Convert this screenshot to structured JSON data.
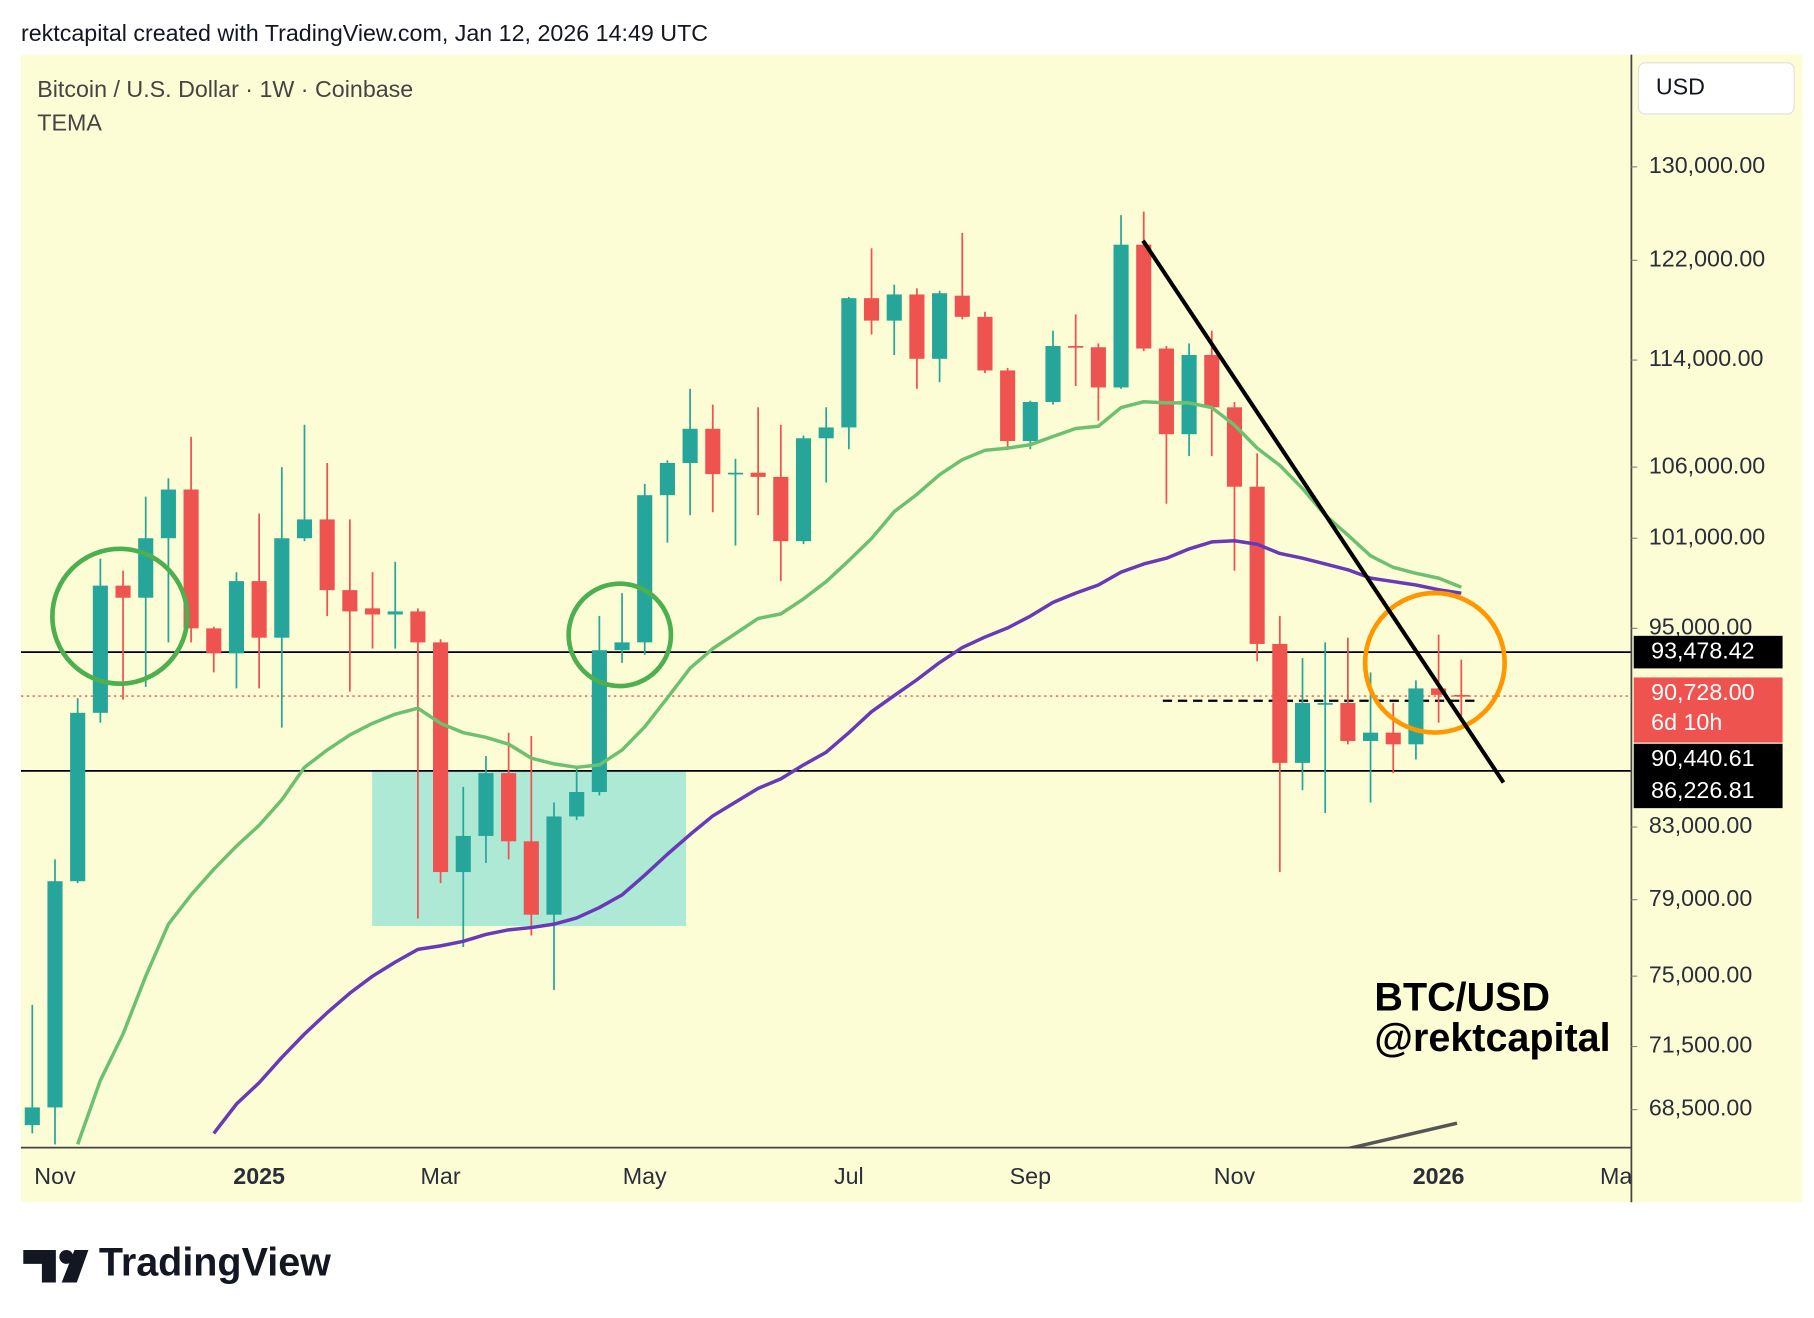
{
  "header": "rektcapital created with TradingView.com, Jan 12, 2026 14:49 UTC",
  "footer": "TradingView",
  "chart_data": {
    "type": "candlestick",
    "title": "Bitcoin / U.S. Dollar · 1W · Coinbase",
    "indicator": "TEMA",
    "currency": "USD",
    "annotation": [
      "BTC/USD",
      "@rektcapital"
    ],
    "categories": [
      null,
      "Nov",
      null,
      null,
      null,
      null,
      null,
      null,
      null,
      null,
      "2025",
      null,
      null,
      null,
      null,
      null,
      null,
      null,
      "Mar",
      null,
      null,
      null,
      null,
      null,
      null,
      null,
      null,
      "May",
      null,
      null,
      null,
      null,
      null,
      null,
      null,
      null,
      "Jul",
      null,
      null,
      null,
      null,
      null,
      null,
      null,
      "Sep",
      null,
      null,
      null,
      null,
      null,
      null,
      null,
      null,
      "Nov",
      null,
      null,
      null,
      null,
      null,
      null,
      null,
      null,
      "2026",
      null,
      null,
      null,
      null,
      null,
      null,
      null,
      "Mar"
    ],
    "open": [
      67780,
      68600,
      80000,
      89700,
      97800,
      97000,
      101000,
      104400,
      95000,
      93400,
      98100,
      94400,
      101000,
      102300,
      97500,
      96300,
      95900,
      96100,
      94100,
      80500,
      82500,
      86100,
      82200,
      78200,
      83600,
      85000,
      93600,
      94100,
      104000,
      106300,
      108800,
      105500,
      105600,
      105300,
      100800,
      108100,
      108900,
      118900,
      117100,
      119200,
      114100,
      119100,
      117400,
      113200,
      107900,
      110800,
      115100,
      115000,
      111900,
      123300,
      114900,
      108400,
      114400,
      110400,
      104600,
      94000,
      86700,
      90200,
      90300,
      88000,
      88500,
      87800,
      91200,
      90800,
      null,
      null,
      null,
      null,
      null,
      null,
      null
    ],
    "high": [
      73550,
      81200,
      90600,
      99600,
      98800,
      103900,
      105200,
      108200,
      95100,
      98700,
      102700,
      106000,
      109100,
      106300,
      102300,
      98700,
      99400,
      96300,
      94300,
      85300,
      87100,
      88500,
      88300,
      84400,
      86400,
      95800,
      97300,
      104800,
      106500,
      111800,
      110600,
      106600,
      110400,
      109100,
      108300,
      110400,
      119000,
      123000,
      120000,
      119700,
      119500,
      124300,
      117800,
      113400,
      110900,
      116300,
      117600,
      115300,
      125800,
      126100,
      115100,
      115300,
      116300,
      110800,
      107000,
      95800,
      93100,
      94100,
      94400,
      92200,
      90300,
      91700,
      94600,
      93000,
      null,
      null,
      null,
      null,
      null,
      null,
      null
    ],
    "low": [
      67400,
      66900,
      79900,
      89100,
      90500,
      91300,
      94100,
      94100,
      92200,
      91200,
      91200,
      88800,
      100800,
      95800,
      91000,
      93700,
      93700,
      78000,
      79900,
      76500,
      81000,
      81200,
      77100,
      74300,
      83400,
      84800,
      92800,
      93300,
      100700,
      102600,
      102800,
      100500,
      102600,
      98100,
      100600,
      104900,
      107300,
      116000,
      114400,
      111800,
      112300,
      117200,
      113000,
      107400,
      107300,
      110600,
      112000,
      109400,
      111800,
      114700,
      103400,
      106800,
      106800,
      98800,
      92900,
      80500,
      85100,
      83800,
      87800,
      84400,
      86100,
      86900,
      89100,
      89500,
      null,
      null,
      null,
      null,
      null,
      null,
      null
    ],
    "close": [
      68600,
      80000,
      89700,
      97800,
      97000,
      101000,
      104400,
      95000,
      93400,
      98100,
      94400,
      101000,
      102300,
      97500,
      96100,
      95900,
      96100,
      94100,
      80500,
      82500,
      86100,
      82200,
      78200,
      83600,
      85000,
      93600,
      94100,
      104000,
      106300,
      108800,
      105500,
      105600,
      105300,
      100800,
      108100,
      108900,
      118900,
      117100,
      119200,
      114100,
      119300,
      117400,
      113200,
      107900,
      110800,
      115100,
      115000,
      111900,
      123300,
      114900,
      108400,
      114400,
      110400,
      104600,
      94000,
      86700,
      90300,
      90300,
      88000,
      88500,
      87800,
      91200,
      90800,
      90728,
      null,
      null,
      null,
      null,
      null,
      null,
      null
    ],
    "up_color": "#26a69a",
    "down_color": "#ef5350",
    "series": [
      {
        "color": "#6cc070",
        "values": [
          null,
          null,
          66900,
          69870,
          72110,
          75000,
          77700,
          79260,
          80650,
          81930,
          83100,
          84550,
          86440,
          87460,
          88360,
          89060,
          89620,
          89980,
          89060,
          88500,
          88220,
          87810,
          86980,
          86640,
          86440,
          86580,
          87460,
          88850,
          90620,
          92460,
          93700,
          94660,
          95640,
          95940,
          96920,
          98070,
          99480,
          100980,
          102840,
          104060,
          105460,
          106540,
          107220,
          107380,
          107630,
          108230,
          108820,
          108990,
          110380,
          110820,
          110730,
          110730,
          110380,
          109080,
          107380,
          106130,
          104470,
          102600,
          101220,
          99800,
          99020,
          98620,
          98300,
          97690,
          null,
          null,
          null,
          null,
          null,
          null,
          null
        ]
      },
      {
        "color": "#673ab7",
        "values": [
          null,
          null,
          null,
          null,
          null,
          null,
          null,
          null,
          67400,
          68760,
          69760,
          70970,
          72110,
          73160,
          74140,
          75000,
          75720,
          76380,
          76560,
          76800,
          77160,
          77400,
          77520,
          77700,
          78030,
          78580,
          79260,
          80330,
          81480,
          82580,
          83630,
          84420,
          85210,
          85760,
          86580,
          87330,
          88500,
          89770,
          90760,
          91740,
          92820,
          93770,
          94440,
          95030,
          95790,
          96690,
          97300,
          97840,
          98700,
          99250,
          99640,
          100270,
          100750,
          100830,
          100590,
          99960,
          99640,
          99250,
          98860,
          98300,
          98070,
          97840,
          97530,
          97300,
          null,
          null,
          null,
          null,
          null,
          null,
          null
        ]
      }
    ],
    "ylim": [
      66750,
      140300
    ],
    "log_scale": true,
    "grid": false,
    "yticks": [
      {
        "value": 68500,
        "label": "68,500.00"
      },
      {
        "value": 71500,
        "label": "71,500.00"
      },
      {
        "value": 75000,
        "label": "75,000.00"
      },
      {
        "value": 79000,
        "label": "79,000.00"
      },
      {
        "value": 83000,
        "label": "83,000.00"
      },
      {
        "value": 95000,
        "label": "95,000.00"
      },
      {
        "value": 101000,
        "label": "101,000.00"
      },
      {
        "value": 106000,
        "label": "106,000.00"
      },
      {
        "value": 114000,
        "label": "114,000.00"
      },
      {
        "value": 122000,
        "label": "122,000.00"
      },
      {
        "value": 130000,
        "label": "130,000.00"
      }
    ],
    "price_lines": [
      {
        "value": 93478.42,
        "label": "93,478.42",
        "color": "#000000"
      },
      {
        "value": 86226.81,
        "label": "86,226.81",
        "color": "#000000"
      }
    ],
    "dashed_line": {
      "value": 90440.61,
      "label": "90,440.61",
      "color": "#000000"
    },
    "last_price": {
      "value": 90728,
      "label": "90,728.00",
      "countdown": "6d 10h",
      "color": "#ef5350"
    },
    "highlight_zone": {
      "from": 77600,
      "to": 86226.81,
      "color": "#aee9d6"
    }
  }
}
